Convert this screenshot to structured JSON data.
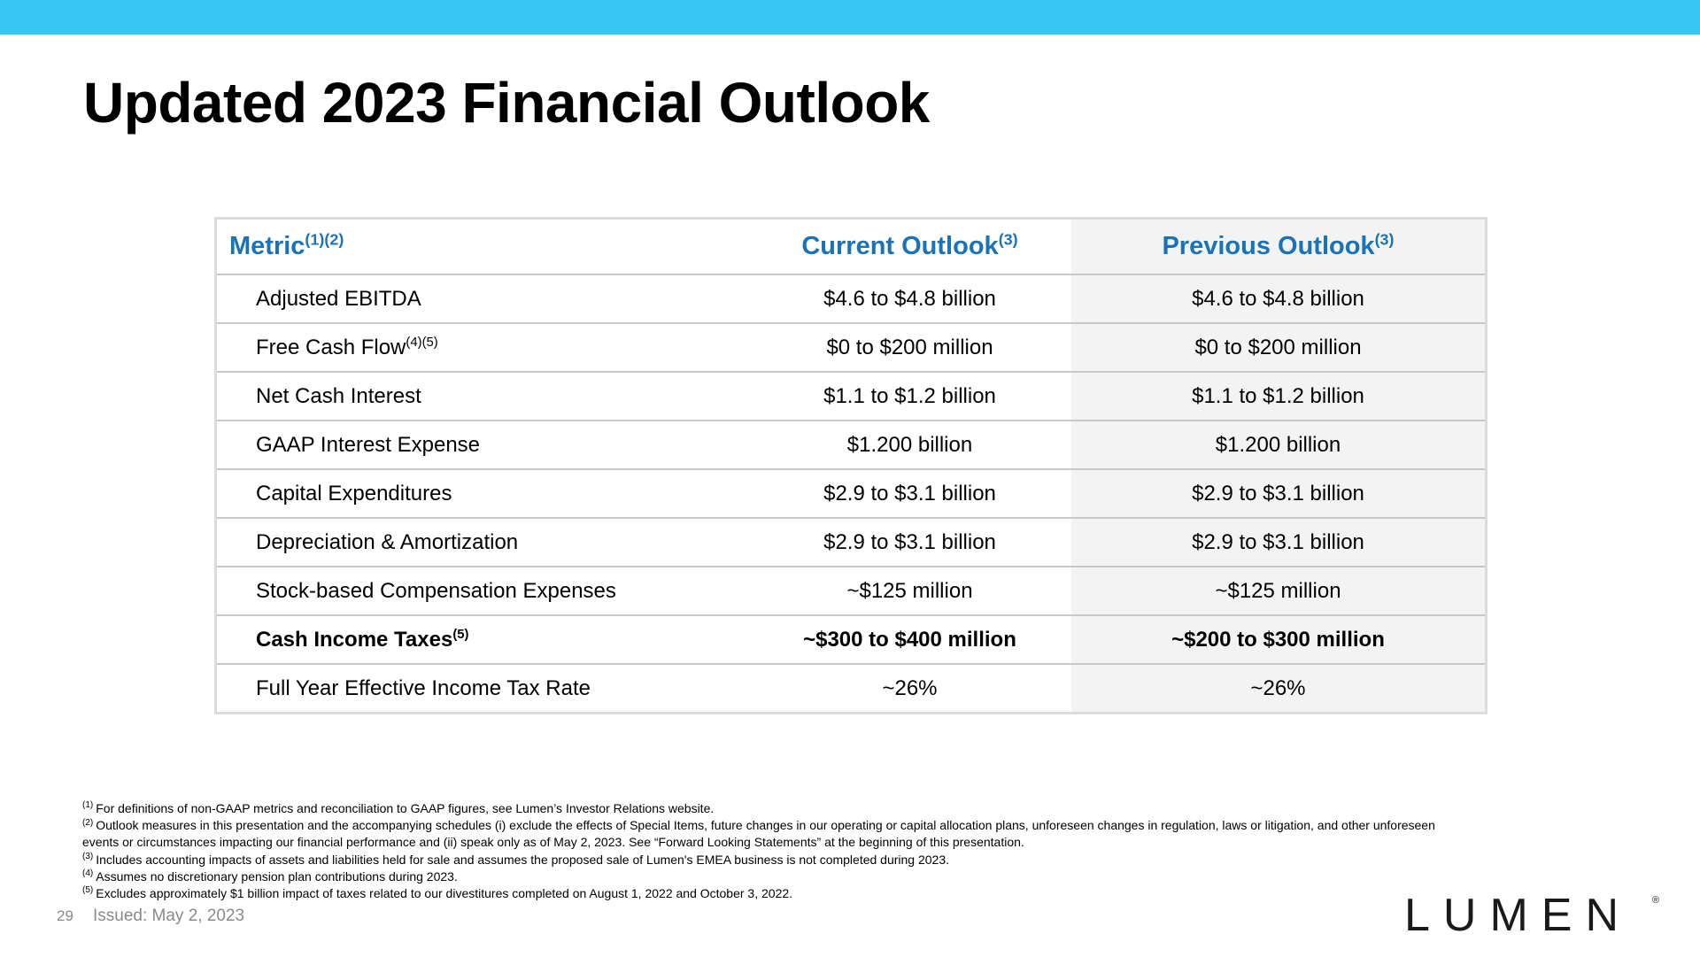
{
  "header": {
    "title": "Updated 2023 Financial Outlook"
  },
  "table": {
    "headers": {
      "metric": "Metric",
      "metric_sup": "(1)(2)",
      "current": "Current Outlook",
      "current_sup": "(3)",
      "previous": "Previous Outlook",
      "previous_sup": "(3)"
    },
    "rows": [
      {
        "metric": "Adjusted EBITDA",
        "sup": "",
        "current": "$4.6 to $4.8 billion",
        "previous": "$4.6 to $4.8 billion"
      },
      {
        "metric": "Free Cash Flow",
        "sup": "(4)(5)",
        "current": "$0 to $200 million",
        "previous": "$0 to $200 million"
      },
      {
        "metric": "Net Cash Interest",
        "sup": "",
        "current": "$1.1 to $1.2 billion",
        "previous": "$1.1 to $1.2 billion"
      },
      {
        "metric": "GAAP Interest Expense",
        "sup": "",
        "current": "$1.200 billion",
        "previous": "$1.200 billion"
      },
      {
        "metric": "Capital Expenditures",
        "sup": "",
        "current": "$2.9 to $3.1 billion",
        "previous": "$2.9 to $3.1 billion"
      },
      {
        "metric": "Depreciation & Amortization",
        "sup": "",
        "current": "$2.9 to $3.1 billion",
        "previous": "$2.9 to $3.1 billion"
      },
      {
        "metric": "Stock-based Compensation Expenses",
        "sup": "",
        "current": "~$125 million",
        "previous": "~$125 million"
      },
      {
        "metric": "Cash Income Taxes",
        "sup": "(5)",
        "current": "~$300 to $400 million",
        "previous": "~$200 to $300 million"
      },
      {
        "metric": "Full Year Effective Income Tax Rate",
        "sup": "",
        "current": "~26%",
        "previous": "~26%"
      }
    ]
  },
  "footnotes": [
    {
      "marker": "(1)",
      "text": "For definitions of non-GAAP metrics and reconciliation to GAAP figures, see Lumen’s Investor Relations website."
    },
    {
      "marker": "(2)",
      "text": "Outlook measures in this presentation and the accompanying schedules (i) exclude the effects of Special Items, future changes in our operating or capital allocation plans, unforeseen changes in regulation, laws or litigation, and other unforeseen events or circumstances impacting our financial performance and (ii) speak only as of May 2, 2023. See “Forward Looking Statements” at the beginning of this presentation."
    },
    {
      "marker": "(3)",
      "text": "Includes accounting impacts of assets and liabilities held for sale and assumes the proposed sale of Lumen's EMEA business is not completed during 2023."
    },
    {
      "marker": "(4)",
      "text": "Assumes no discretionary pension plan contributions during 2023."
    },
    {
      "marker": "(5)",
      "text": "Excludes approximately $1 billion impact of taxes related to our divestitures completed on August 1, 2022 and October 3, 2022."
    }
  ],
  "footer": {
    "page_number": "29",
    "issued": "Issued: May 2, 2023",
    "logo_text": "LUMEN",
    "logo_mark": "®"
  },
  "colors": {
    "top_bar": "#38c6f4",
    "header_text": "#1a73b8",
    "previous_column_bg": "#f3f3f3"
  }
}
